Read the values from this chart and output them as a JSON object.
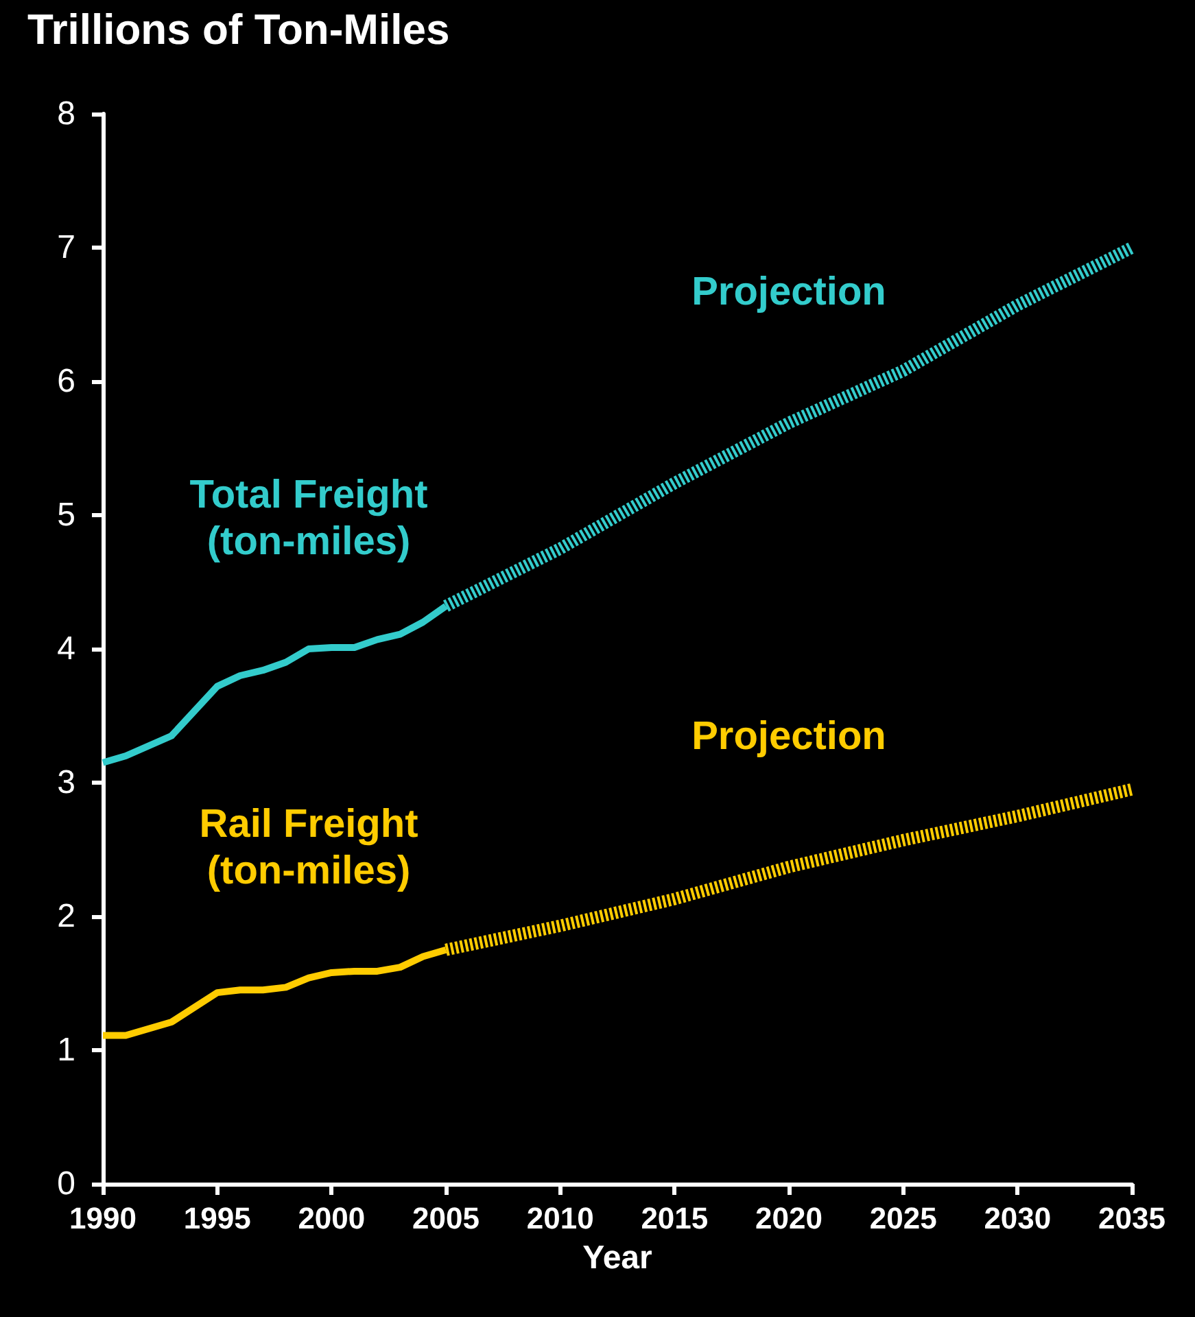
{
  "chart_data": {
    "type": "line",
    "ylabel": "Trillions of Ton-Miles",
    "xlabel": "Year",
    "xlim": [
      1990,
      2035
    ],
    "xticks": [
      1990,
      1995,
      2000,
      2005,
      2010,
      2015,
      2020,
      2025,
      2030,
      2035
    ],
    "ylim": [
      0,
      8
    ],
    "yticks": [
      0,
      1,
      2,
      3,
      4,
      5,
      6,
      7,
      8
    ],
    "grid": false,
    "legend": false,
    "marker": "none",
    "series": [
      {
        "name": "Total Freight\n(ton-miles)",
        "color": "#33cccc",
        "line_style": "solid",
        "x": [
          1990,
          1991,
          1993,
          1995,
          1996,
          1997,
          1998,
          1999,
          2000,
          2001,
          2002,
          2003,
          2004,
          2005
        ],
        "values": [
          3.15,
          3.2,
          3.35,
          3.72,
          3.8,
          3.84,
          3.9,
          4.0,
          4.01,
          4.01,
          4.07,
          4.11,
          4.2,
          4.32
        ]
      },
      {
        "name": "Projection",
        "color": "#33cccc",
        "line_style": "dashed",
        "x": [
          2005,
          2010,
          2015,
          2020,
          2025,
          2030,
          2035
        ],
        "values": [
          4.32,
          4.75,
          5.24,
          5.69,
          6.08,
          6.57,
          7.0
        ]
      },
      {
        "name": "Rail Freight\n(ton-miles)",
        "color": "#ffcc00",
        "line_style": "solid",
        "x": [
          1990,
          1991,
          1993,
          1995,
          1996,
          1997,
          1998,
          1999,
          2000,
          2001,
          2002,
          2003,
          2004,
          2005
        ],
        "values": [
          1.11,
          1.11,
          1.21,
          1.43,
          1.45,
          1.45,
          1.47,
          1.54,
          1.58,
          1.59,
          1.59,
          1.62,
          1.7,
          1.75
        ]
      },
      {
        "name": "Projection",
        "color": "#ffcc00",
        "line_style": "dashed",
        "x": [
          2005,
          2010,
          2015,
          2020,
          2025,
          2030,
          2035
        ],
        "values": [
          1.75,
          1.93,
          2.13,
          2.37,
          2.57,
          2.75,
          2.95
        ]
      }
    ]
  }
}
